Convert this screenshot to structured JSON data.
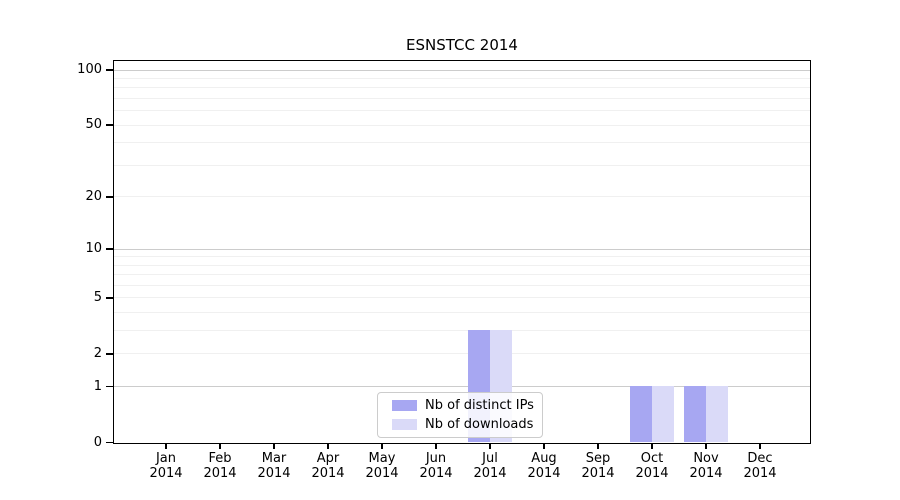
{
  "chart_data": {
    "type": "bar",
    "title": "ESNSTCC 2014",
    "categories": [
      "Jan",
      "Feb",
      "Mar",
      "Apr",
      "May",
      "Jun",
      "Jul",
      "Aug",
      "Sep",
      "Oct",
      "Nov",
      "Dec"
    ],
    "category_year": "2014",
    "series": [
      {
        "name": "Nb of distinct IPs",
        "color": "#a7a7f2",
        "values": [
          0,
          0,
          0,
          0,
          0,
          0,
          3,
          0,
          0,
          1,
          1,
          0
        ]
      },
      {
        "name": "Nb of downloads",
        "color": "#dadaf8",
        "values": [
          0,
          0,
          0,
          0,
          0,
          0,
          3,
          0,
          0,
          1,
          1,
          0
        ]
      }
    ],
    "y_scale": "log10(1+v)",
    "y_ticks": [
      0,
      1,
      2,
      5,
      10,
      20,
      50,
      100
    ],
    "y_major_gridlines": [
      1,
      10,
      100
    ],
    "y_minor_gridlines": [
      2,
      3,
      4,
      5,
      6,
      7,
      8,
      9,
      20,
      30,
      40,
      50,
      60,
      70,
      80,
      90
    ],
    "ylim": [
      0,
      113
    ],
    "grid_on": true,
    "legend_position": "lower center",
    "colors": {
      "axis": "#000000",
      "major_grid": "#cccccc",
      "minor_grid": "#f0f0f0",
      "legend_border": "#cccccc"
    }
  }
}
